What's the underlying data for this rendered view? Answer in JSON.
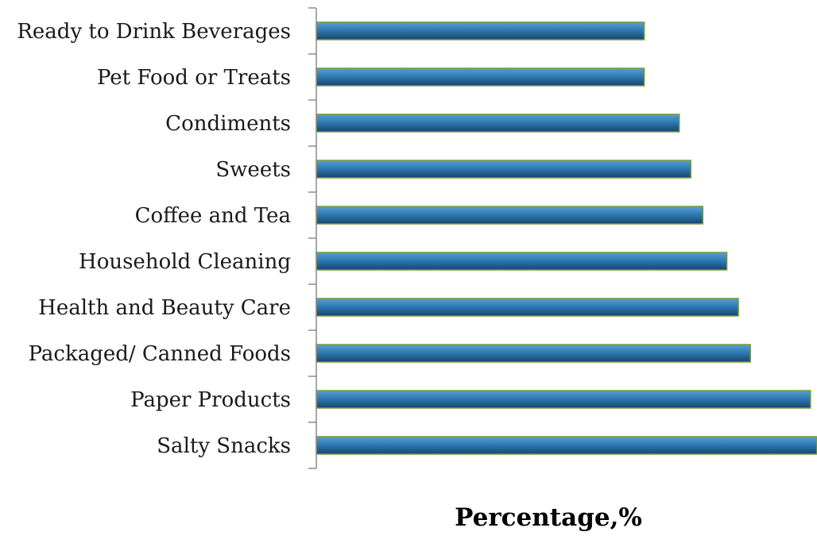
{
  "chart_data": {
    "type": "bar",
    "orientation": "horizontal",
    "categories": [
      "Ready to Drink Beverages",
      "Pet Food or Treats",
      "Condiments",
      "Sweets",
      "Coffee and Tea",
      "Household Cleaning ",
      "Health and Beauty Care",
      "Packaged/ Canned Foods",
      "Paper Products",
      "Salty Snacks"
    ],
    "values": [
      65.5,
      65.5,
      72.5,
      74.8,
      77.2,
      82.0,
      84.3,
      86.7,
      98.7,
      100
    ],
    "xlabel": "Percentage,%",
    "ylabel": "",
    "xlim": [
      0,
      100
    ],
    "grid": false,
    "legend": "none",
    "colors": {
      "bar_dark": "#16466e",
      "bar_mid": "#2f7bb4",
      "bar_light": "#5a9fd0",
      "bar_edge": "#7a9a3a",
      "axis": "#8c8c8c"
    }
  }
}
